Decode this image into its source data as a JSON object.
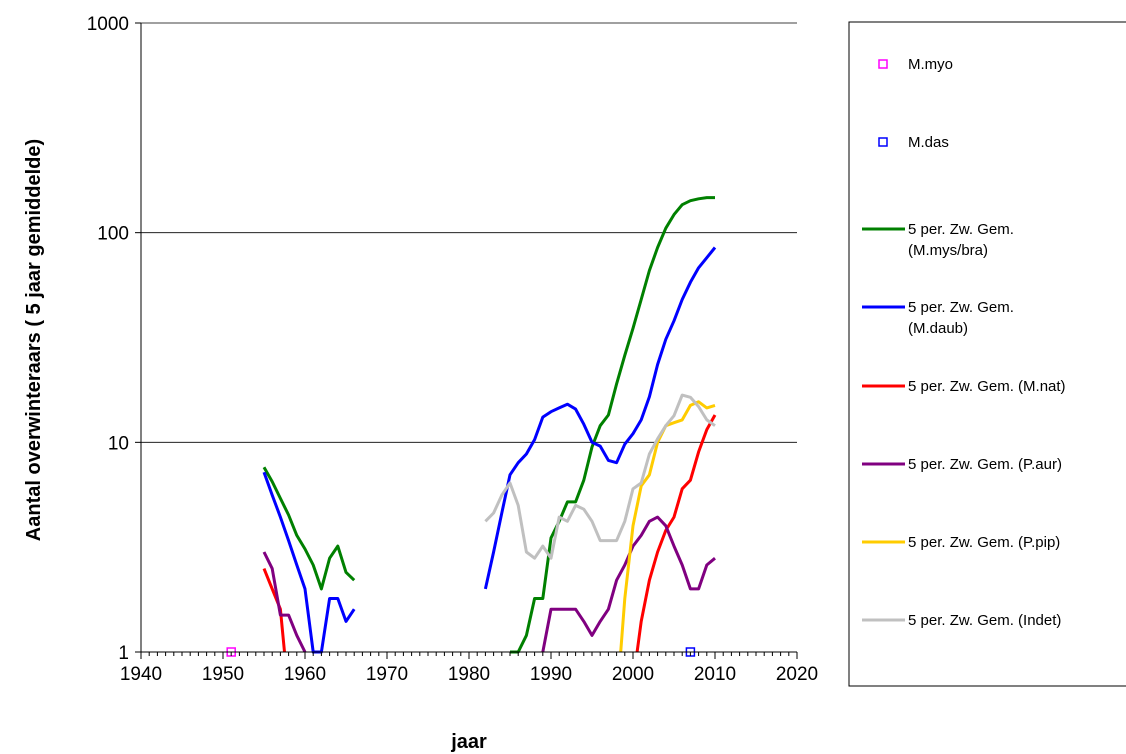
{
  "chart_data": {
    "type": "line",
    "xlabel": "jaar",
    "ylabel": "Aantal overwinteraars      ( 5 jaar gemiddelde)",
    "x_ticks": [
      "1940",
      "1950",
      "1960",
      "1970",
      "1980",
      "1990",
      "2000",
      "2010",
      "2020"
    ],
    "y_ticks": [
      "1",
      "10",
      "100",
      "1000"
    ],
    "xlim": [
      1940,
      2020
    ],
    "ylim": [
      1,
      1000
    ],
    "y_scale": "log",
    "grid": "horizontal major lines",
    "legend_position": "right",
    "series": [
      {
        "name": "M.myo",
        "color": "#ff00ff",
        "style": "marker",
        "points": [
          [
            1951,
            1
          ]
        ]
      },
      {
        "name": "M.das",
        "color": "#0000ff",
        "style": "marker",
        "points": [
          [
            2007,
            1
          ]
        ]
      },
      {
        "name": "5 per. Zw. Gem. (M.mys/bra)",
        "color": "#008000",
        "style": "line",
        "points": [
          [
            1955,
            7.6
          ],
          [
            1956,
            6.5
          ],
          [
            1957,
            5.4
          ],
          [
            1958,
            4.5
          ],
          [
            1959,
            3.6
          ],
          [
            1960,
            3.1
          ],
          [
            1961,
            2.6
          ],
          [
            1962,
            2.0
          ],
          [
            1963,
            2.8
          ],
          [
            1964,
            3.2
          ],
          [
            1965,
            2.4
          ],
          [
            1966,
            2.2
          ],
          null,
          [
            1985,
            1.0
          ],
          [
            1986,
            1.0
          ],
          [
            1987,
            1.2
          ],
          [
            1988,
            1.8
          ],
          [
            1989,
            1.8
          ],
          [
            1990,
            3.5
          ],
          [
            1991,
            4.2
          ],
          [
            1992,
            5.2
          ],
          [
            1993,
            5.2
          ],
          [
            1994,
            6.6
          ],
          [
            1995,
            9.5
          ],
          [
            1996,
            12
          ],
          [
            1997,
            13.5
          ],
          [
            1998,
            19
          ],
          [
            1999,
            26
          ],
          [
            2000,
            35
          ],
          [
            2001,
            48
          ],
          [
            2002,
            66
          ],
          [
            2003,
            85
          ],
          [
            2004,
            105
          ],
          [
            2005,
            122
          ],
          [
            2006,
            136
          ],
          [
            2007,
            142
          ],
          [
            2008,
            145
          ],
          [
            2009,
            147
          ],
          [
            2010,
            147
          ]
        ]
      },
      {
        "name": "5 per. Zw. Gem. (M.daub)",
        "color": "#0000ff",
        "style": "line",
        "points": [
          [
            1955,
            7.2
          ],
          [
            1956,
            5.6
          ],
          [
            1957,
            4.4
          ],
          [
            1958,
            3.4
          ],
          [
            1959,
            2.6
          ],
          [
            1960,
            2.0
          ],
          [
            1961,
            1.0
          ],
          [
            1962,
            1.0
          ],
          [
            1963,
            1.8
          ],
          [
            1964,
            1.8
          ],
          [
            1965,
            1.4
          ],
          [
            1966,
            1.6
          ],
          null,
          [
            1982,
            2.0
          ],
          [
            1983,
            3.0
          ],
          [
            1984,
            4.6
          ],
          [
            1985,
            7.0
          ],
          [
            1986,
            8.0
          ],
          [
            1987,
            8.8
          ],
          [
            1988,
            10.3
          ],
          [
            1989,
            13.2
          ],
          [
            1990,
            14.0
          ],
          [
            1991,
            14.6
          ],
          [
            1992,
            15.2
          ],
          [
            1993,
            14.4
          ],
          [
            1994,
            12.2
          ],
          [
            1995,
            10.0
          ],
          [
            1996,
            9.6
          ],
          [
            1997,
            8.2
          ],
          [
            1998,
            8.0
          ],
          [
            1999,
            9.8
          ],
          [
            2000,
            11.0
          ],
          [
            2001,
            12.8
          ],
          [
            2002,
            16.5
          ],
          [
            2003,
            23.5
          ],
          [
            2004,
            31
          ],
          [
            2005,
            38
          ],
          [
            2006,
            48
          ],
          [
            2007,
            58
          ],
          [
            2008,
            68
          ],
          [
            2009,
            76
          ],
          [
            2010,
            85
          ]
        ]
      },
      {
        "name": "5 per. Zw. Gem. (M.nat)",
        "color": "#ff0000",
        "style": "line",
        "points": [
          [
            1955,
            2.5
          ],
          [
            1956,
            2.0
          ],
          [
            1957,
            1.6
          ],
          [
            1957.5,
            1.0
          ],
          null,
          [
            2000.5,
            1.0
          ],
          [
            2001,
            1.4
          ],
          [
            2002,
            2.2
          ],
          [
            2003,
            3.0
          ],
          [
            2004,
            3.8
          ],
          [
            2005,
            4.4
          ],
          [
            2006,
            6.0
          ],
          [
            2007,
            6.6
          ],
          [
            2008,
            9.0
          ],
          [
            2009,
            11.5
          ],
          [
            2010,
            13.5
          ]
        ]
      },
      {
        "name": "5 per. Zw. Gem. (P.aur)",
        "color": "#800080",
        "style": "line",
        "points": [
          [
            1955,
            3.0
          ],
          [
            1956,
            2.5
          ],
          [
            1957,
            1.5
          ],
          [
            1958,
            1.5
          ],
          [
            1959,
            1.2
          ],
          [
            1960,
            1.0
          ],
          null,
          [
            1989,
            1.0
          ],
          [
            1990,
            1.6
          ],
          [
            1991,
            1.6
          ],
          [
            1992,
            1.6
          ],
          [
            1993,
            1.6
          ],
          [
            1994,
            1.4
          ],
          [
            1995,
            1.2
          ],
          [
            1996,
            1.4
          ],
          [
            1997,
            1.6
          ],
          [
            1998,
            2.2
          ],
          [
            1999,
            2.6
          ],
          [
            2000,
            3.2
          ],
          [
            2001,
            3.6
          ],
          [
            2002,
            4.2
          ],
          [
            2003,
            4.4
          ],
          [
            2004,
            4.0
          ],
          [
            2005,
            3.2
          ],
          [
            2006,
            2.6
          ],
          [
            2007,
            2.0
          ],
          [
            2008,
            2.0
          ],
          [
            2009,
            2.6
          ],
          [
            2010,
            2.8
          ]
        ]
      },
      {
        "name": "5 per. Zw. Gem. (P.pip)",
        "color": "#ffcc00",
        "style": "line",
        "points": [
          [
            1998.5,
            1.0
          ],
          [
            1999,
            1.8
          ],
          [
            2000,
            4.0
          ],
          [
            2001,
            6.2
          ],
          [
            2002,
            7.0
          ],
          [
            2003,
            10.0
          ],
          [
            2004,
            12.0
          ],
          [
            2005,
            12.4
          ],
          [
            2006,
            12.8
          ],
          [
            2007,
            15.0
          ],
          [
            2008,
            15.6
          ],
          [
            2009,
            14.6
          ],
          [
            2010,
            15.0
          ]
        ]
      },
      {
        "name": "5 per. Zw. Gem. (Indet)",
        "color": "#c0c0c0",
        "style": "line",
        "points": [
          [
            1982,
            4.2
          ],
          [
            1983,
            4.6
          ],
          [
            1984,
            5.6
          ],
          [
            1985,
            6.4
          ],
          [
            1986,
            5.0
          ],
          [
            1987,
            3.0
          ],
          [
            1988,
            2.8
          ],
          [
            1989,
            3.2
          ],
          [
            1990,
            2.8
          ],
          [
            1991,
            4.4
          ],
          [
            1992,
            4.2
          ],
          [
            1993,
            5.0
          ],
          [
            1994,
            4.8
          ],
          [
            1995,
            4.2
          ],
          [
            1996,
            3.4
          ],
          [
            1997,
            3.4
          ],
          [
            1998,
            3.4
          ],
          [
            1999,
            4.2
          ],
          [
            2000,
            6.0
          ],
          [
            2001,
            6.4
          ],
          [
            2002,
            8.8
          ],
          [
            2003,
            10.4
          ],
          [
            2004,
            12.0
          ],
          [
            2005,
            13.4
          ],
          [
            2006,
            16.8
          ],
          [
            2007,
            16.4
          ],
          [
            2008,
            14.8
          ],
          [
            2009,
            12.8
          ],
          [
            2010,
            12.0
          ]
        ]
      }
    ],
    "legend": [
      {
        "label": "M.myo",
        "series": 0
      },
      {
        "label": "M.das",
        "series": 1
      },
      {
        "label": "5 per. Zw. Gem.",
        "label2": "(M.mys/bra)",
        "series": 2
      },
      {
        "label": "5 per. Zw. Gem.",
        "label2": "(M.daub)",
        "series": 3
      },
      {
        "label": "5 per. Zw. Gem. (M.nat)",
        "series": 4
      },
      {
        "label": "5 per. Zw. Gem. (P.aur)",
        "series": 5
      },
      {
        "label": "5 per. Zw. Gem. (P.pip)",
        "series": 6
      },
      {
        "label": "5 per. Zw. Gem. (Indet)",
        "series": 7
      }
    ]
  }
}
